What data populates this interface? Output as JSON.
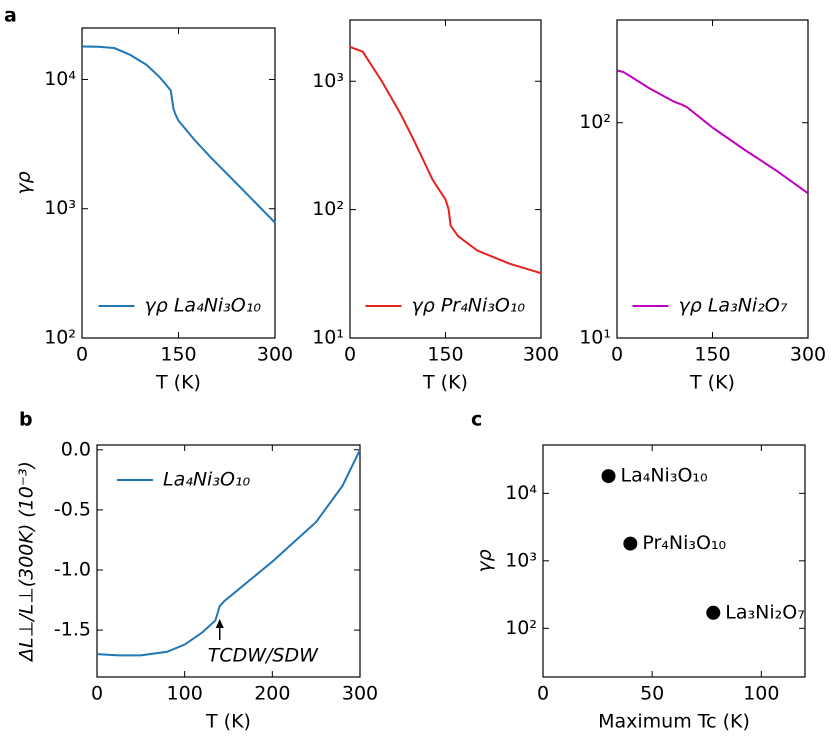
{
  "chart_data": [
    {
      "type": "line",
      "panel_label": "a",
      "ylabel": "γρ",
      "xlabel": "T (K)",
      "log_y": true,
      "legend": "lower center",
      "xlim": [
        0,
        300
      ],
      "xticks": [
        0,
        150,
        300
      ],
      "ylim": [
        100,
        25000
      ],
      "yticks": [
        {
          "value": 100,
          "label": "10²"
        },
        {
          "value": 1000,
          "label": "10³"
        },
        {
          "value": 10000,
          "label": "10⁴"
        }
      ],
      "x": [
        0,
        25,
        50,
        75,
        100,
        120,
        130,
        138,
        142,
        145,
        150,
        175,
        200,
        250,
        300
      ],
      "series": [
        {
          "name": "γρ La₄Ni₃O₁₀",
          "color": "#1f77b4",
          "values": [
            18000,
            17900,
            17500,
            15500,
            13000,
            10500,
            9200,
            8200,
            6000,
            5400,
            4800,
            3400,
            2500,
            1400,
            780
          ]
        }
      ]
    },
    {
      "type": "line",
      "xlabel": "T (K)",
      "log_y": true,
      "legend": "lower center",
      "xlim": [
        0,
        300
      ],
      "xticks": [
        0,
        150,
        300
      ],
      "ylim": [
        10,
        3000
      ],
      "yticks": [
        {
          "value": 10,
          "label": "10¹"
        },
        {
          "value": 100,
          "label": "10²"
        },
        {
          "value": 1000,
          "label": "10³"
        }
      ],
      "x": [
        0,
        20,
        50,
        80,
        100,
        130,
        150,
        155,
        158,
        170,
        200,
        250,
        300
      ],
      "series": [
        {
          "name": "γρ Pr₄Ni₃O₁₀",
          "color": "#e8211d",
          "values": [
            1850,
            1700,
            1000,
            550,
            350,
            170,
            120,
            100,
            75,
            62,
            48,
            38,
            32
          ]
        }
      ]
    },
    {
      "type": "line",
      "xlabel": "T (K)",
      "log_y": true,
      "legend": "lower center",
      "xlim": [
        0,
        300
      ],
      "xticks": [
        0,
        150,
        300
      ],
      "ylim": [
        10,
        300
      ],
      "yticks": [
        {
          "value": 10,
          "label": "10¹"
        },
        {
          "value": 100,
          "label": "10²"
        }
      ],
      "x": [
        0,
        10,
        20,
        50,
        90,
        100,
        110,
        150,
        200,
        250,
        300
      ],
      "series": [
        {
          "name": "γρ La₃Ni₂O₇",
          "color": "#bf00bf",
          "values": [
            175,
            172,
            165,
            145,
            125,
            122,
            118,
            95,
            75,
            60,
            47
          ]
        }
      ]
    },
    {
      "type": "line",
      "panel_label": "b",
      "ylabel": "ΔL⊥/L⊥(300K) (10⁻³)",
      "xlabel": "T (K)",
      "log_y": false,
      "legend": "upper left",
      "annotation": "TCDW/SDW",
      "xlim": [
        0,
        300
      ],
      "xticks": [
        0,
        100,
        200,
        300
      ],
      "ylim": [
        -1.89,
        0.04
      ],
      "yticks": [
        -1.5,
        {
          "value": -1.0,
          "label": "-1.0"
        },
        -0.5,
        {
          "value": 0,
          "label": "0.0"
        }
      ],
      "x": [
        0,
        25,
        50,
        80,
        100,
        120,
        135,
        140,
        145,
        160,
        200,
        250,
        280,
        300
      ],
      "series": [
        {
          "name": "La₄Ni₃O₁₀",
          "color": "#1f77b4",
          "values": [
            -1.7,
            -1.71,
            -1.71,
            -1.68,
            -1.62,
            -1.52,
            -1.42,
            -1.3,
            -1.26,
            -1.17,
            -0.93,
            -0.6,
            -0.3,
            0.0
          ]
        }
      ]
    },
    {
      "type": "scatter",
      "panel_label": "c",
      "ylabel": "γρ",
      "xlabel": "Maximum Tc (K)",
      "log_y": true,
      "xlim": [
        0,
        120
      ],
      "xticks": [
        0,
        50,
        100
      ],
      "ylim": [
        19,
        52000
      ],
      "yticks": [
        {
          "value": 100,
          "label": "10²"
        },
        {
          "value": 1000,
          "label": "10³"
        },
        {
          "value": 10000,
          "label": "10⁴"
        }
      ],
      "x": [
        30,
        40,
        78
      ],
      "series": [
        {
          "color": "#000000",
          "values": [
            18000,
            1800,
            170
          ],
          "point_labels": [
            "La₄Ni₃O₁₀",
            "Pr₄Ni₃O₁₀",
            "La₃Ni₂O₇"
          ]
        }
      ]
    }
  ]
}
